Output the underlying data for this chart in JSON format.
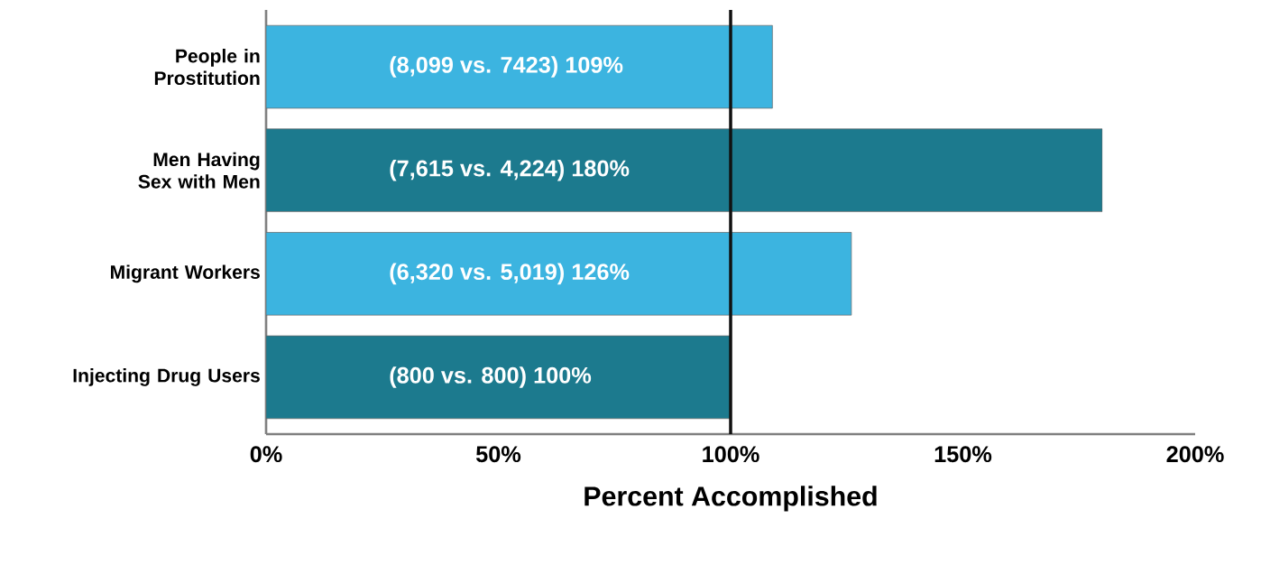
{
  "chart_data": {
    "type": "bar",
    "orientation": "horizontal",
    "xlabel": "Percent Accomplished",
    "categories": [
      "People in Prostitution",
      "Men Having Sex with Men",
      "Migrant Workers",
      "Injecting Drug Users"
    ],
    "values": [
      109,
      180,
      126,
      100
    ],
    "colors": [
      "#3cb4e0",
      "#1c7a8e",
      "#3cb4e0",
      "#1c7a8e"
    ],
    "value_labels": [
      "(8,099 vs. 7423) 109%",
      "(7,615 vs. 4,224) 180%",
      "(6,320 vs. 5,019) 126%",
      "(800 vs. 800) 100%"
    ],
    "xlim": [
      0,
      200
    ],
    "xticks": [
      {
        "value": 0,
        "label": "0%"
      },
      {
        "value": 50,
        "label": "50%"
      },
      {
        "value": 100,
        "label": "100%"
      },
      {
        "value": 150,
        "label": "150%"
      },
      {
        "value": 200,
        "label": "200%"
      }
    ],
    "ref_lines": [
      {
        "axis": "x",
        "value": 100,
        "color": "#111111"
      }
    ],
    "grid": false
  }
}
